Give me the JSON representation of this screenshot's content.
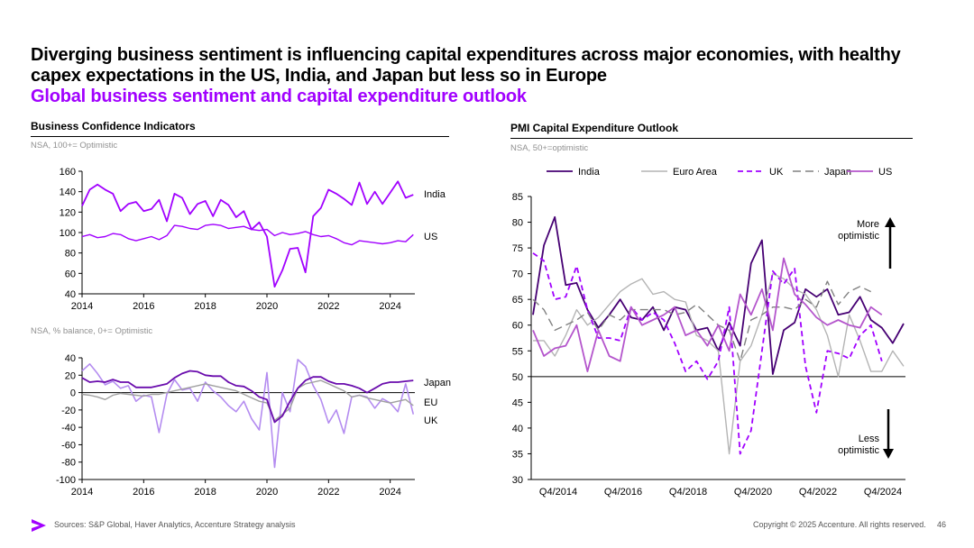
{
  "headline": "Diverging business sentiment is influencing capital expenditures across major economies, with healthy capex expectations in the US, India, and Japan but less so in Europe",
  "subhead": "Global business sentiment and capital expenditure outlook",
  "left_title": "Business Confidence Indicators",
  "right_title": "PMI Capital Expenditure Outlook",
  "note_top": "NSA, 100+= Optimistic",
  "note_bottom": "NSA, % balance, 0+= Optimistic",
  "note_right": "NSA, 50+=optimistic",
  "footer": {
    "sources": "Sources: S&P Global, Haver Analytics, Accenture Strategy analysis",
    "copyright": "Copyright © 2025 Accenture. All rights reserved.",
    "page": "46"
  },
  "colors": {
    "india": "#460073",
    "us_conf": "#a100ff",
    "us_line": "#a100ff",
    "us_pmi": "#b455cc",
    "uk": "#a100ff",
    "uk_conf": "#b48cf0",
    "euro": "#b4b4b4",
    "japan": "#808080",
    "japan_conf": "#6a0dad",
    "eu_conf": "#a0a0a0"
  },
  "chart_data": [
    {
      "type": "line",
      "title": "Business Confidence Indicators",
      "subtitle": "NSA, 100+= Optimistic",
      "ylim": [
        40,
        160
      ],
      "yticks": [
        40,
        60,
        80,
        100,
        120,
        140,
        160
      ],
      "xlim": [
        2014,
        2024.8
      ],
      "xticks": [
        2014,
        2016,
        2018,
        2020,
        2022,
        2024
      ],
      "series": [
        {
          "name": "India",
          "label": "India",
          "color": "#a100ff",
          "width": 1.8,
          "x": [
            2014,
            2014.25,
            2014.5,
            2014.75,
            2015,
            2015.25,
            2015.5,
            2015.75,
            2016,
            2016.25,
            2016.5,
            2016.75,
            2017,
            2017.25,
            2017.5,
            2017.75,
            2018,
            2018.25,
            2018.5,
            2018.75,
            2019,
            2019.25,
            2019.5,
            2019.75,
            2020,
            2020.25,
            2020.5,
            2020.75,
            2021,
            2021.25,
            2021.5,
            2021.75,
            2022,
            2022.25,
            2022.5,
            2022.75,
            2023,
            2023.25,
            2023.5,
            2023.75,
            2024,
            2024.25,
            2024.5,
            2024.75
          ],
          "values": [
            126,
            142,
            147,
            142,
            138,
            121,
            128,
            130,
            121,
            123,
            132,
            111,
            138,
            134,
            118,
            128,
            131,
            116,
            132,
            127,
            115,
            121,
            103,
            110,
            96,
            47,
            63,
            84,
            85,
            61,
            116,
            124,
            142,
            138,
            133,
            127,
            149,
            128,
            140,
            128,
            139,
            150,
            134,
            137
          ]
        },
        {
          "name": "US",
          "label": "US",
          "color": "#a100ff",
          "width": 1.4,
          "x": [
            2014,
            2014.25,
            2014.5,
            2014.75,
            2015,
            2015.25,
            2015.5,
            2015.75,
            2016,
            2016.25,
            2016.5,
            2016.75,
            2017,
            2017.25,
            2017.5,
            2017.75,
            2018,
            2018.25,
            2018.5,
            2018.75,
            2019,
            2019.25,
            2019.5,
            2019.75,
            2020,
            2020.25,
            2020.5,
            2020.75,
            2021,
            2021.25,
            2021.5,
            2021.75,
            2022,
            2022.25,
            2022.5,
            2022.75,
            2023,
            2023.25,
            2023.5,
            2023.75,
            2024,
            2024.25,
            2024.5,
            2024.75
          ],
          "values": [
            96,
            98,
            95,
            96,
            99,
            98,
            94,
            92,
            94,
            96,
            93,
            97,
            107,
            106,
            104,
            103,
            107,
            108,
            107,
            104,
            105,
            106,
            103,
            102,
            103,
            97,
            100,
            98,
            99,
            101,
            98,
            96,
            97,
            94,
            90,
            88,
            92,
            91,
            90,
            89,
            90,
            92,
            91,
            98
          ]
        }
      ]
    },
    {
      "type": "line",
      "subtitle": "NSA, % balance, 0+= Optimistic",
      "ylim": [
        -100,
        40
      ],
      "yticks": [
        -100,
        -80,
        -60,
        -40,
        -20,
        0,
        20,
        40
      ],
      "xlim": [
        2014,
        2024.8
      ],
      "xticks": [
        2014,
        2016,
        2018,
        2020,
        2022,
        2024
      ],
      "series": [
        {
          "name": "UK",
          "label": "UK",
          "color": "#b48cf0",
          "width": 1.6,
          "x": [
            2014,
            2014.25,
            2014.5,
            2014.75,
            2015,
            2015.25,
            2015.5,
            2015.75,
            2016,
            2016.25,
            2016.5,
            2016.75,
            2017,
            2017.25,
            2017.5,
            2017.75,
            2018,
            2018.25,
            2018.5,
            2018.75,
            2019,
            2019.25,
            2019.5,
            2019.75,
            2020,
            2020.25,
            2020.5,
            2020.75,
            2021,
            2021.25,
            2021.5,
            2021.75,
            2022,
            2022.25,
            2022.5,
            2022.75,
            2023,
            2023.25,
            2023.5,
            2023.75,
            2024,
            2024.25,
            2024.5,
            2024.75
          ],
          "values": [
            25,
            33,
            22,
            9,
            13,
            5,
            8,
            -10,
            -3,
            -5,
            -46,
            -2,
            15,
            3,
            5,
            -10,
            12,
            2,
            -5,
            -15,
            -22,
            -10,
            -30,
            -43,
            23,
            -86,
            0,
            -22,
            38,
            30,
            8,
            -8,
            -35,
            -20,
            -47,
            -5,
            -3,
            -5,
            -18,
            -7,
            -12,
            -22,
            10,
            -25
          ]
        },
        {
          "name": "EU",
          "label": "EU",
          "color": "#a0a0a0",
          "width": 1.4,
          "x": [
            2014,
            2014.25,
            2014.5,
            2014.75,
            2015,
            2015.25,
            2015.5,
            2015.75,
            2016,
            2016.25,
            2016.5,
            2016.75,
            2017,
            2017.25,
            2017.5,
            2017.75,
            2018,
            2018.25,
            2018.5,
            2018.75,
            2019,
            2019.25,
            2019.5,
            2019.75,
            2020,
            2020.25,
            2020.5,
            2020.75,
            2021,
            2021.25,
            2021.5,
            2021.75,
            2022,
            2022.25,
            2022.5,
            2022.75,
            2023,
            2023.25,
            2023.5,
            2023.75,
            2024,
            2024.25,
            2024.5,
            2024.75
          ],
          "values": [
            -2,
            -3,
            -5,
            -8,
            -3,
            -1,
            -2,
            -3,
            -4,
            -2,
            -2,
            0,
            2,
            4,
            6,
            8,
            10,
            8,
            6,
            4,
            2,
            -2,
            -6,
            -10,
            -12,
            -32,
            -25,
            -18,
            5,
            10,
            12,
            14,
            10,
            6,
            2,
            -5,
            -3,
            -6,
            -8,
            -10,
            -12,
            -10,
            -8,
            -15
          ]
        },
        {
          "name": "Japan",
          "label": "Japan",
          "color": "#6a0dad",
          "width": 1.8,
          "x": [
            2014,
            2014.25,
            2014.5,
            2014.75,
            2015,
            2015.25,
            2015.5,
            2015.75,
            2016,
            2016.25,
            2016.5,
            2016.75,
            2017,
            2017.25,
            2017.5,
            2017.75,
            2018,
            2018.25,
            2018.5,
            2018.75,
            2019,
            2019.25,
            2019.5,
            2019.75,
            2020,
            2020.25,
            2020.5,
            2020.75,
            2021,
            2021.25,
            2021.5,
            2021.75,
            2022,
            2022.25,
            2022.5,
            2022.75,
            2023,
            2023.25,
            2023.5,
            2023.75,
            2024,
            2024.25,
            2024.5,
            2024.75
          ],
          "values": [
            17,
            12,
            13,
            12,
            15,
            12,
            12,
            6,
            6,
            6,
            8,
            10,
            17,
            22,
            25,
            24,
            20,
            19,
            19,
            12,
            8,
            7,
            2,
            -5,
            -8,
            -34,
            -27,
            -10,
            5,
            14,
            18,
            18,
            13,
            10,
            10,
            8,
            5,
            0,
            5,
            10,
            12,
            12,
            13,
            14
          ]
        }
      ]
    },
    {
      "type": "line",
      "title": "PMI Capital Expenditure Outlook",
      "subtitle": "NSA, 50+=optimistic",
      "ylim": [
        30,
        85
      ],
      "yticks": [
        30,
        35,
        40,
        45,
        50,
        55,
        60,
        65,
        70,
        75,
        80,
        85
      ],
      "xlim": [
        0,
        46
      ],
      "xticks": [
        2,
        12,
        22,
        32,
        42
      ],
      "xticklabels": [
        "Q4/2014",
        "Q4/2016",
        "Q4/2018",
        "Q4/2020",
        "Q4/2022",
        "Q4/2024"
      ],
      "xticks_all": [
        2,
        12,
        22,
        32,
        42,
        52
      ],
      "legend": [
        "India",
        "Euro Area",
        "UK",
        "Japan",
        "US"
      ],
      "annotations": [
        "More optimistic",
        "Less optimistic"
      ],
      "series": [
        {
          "name": "India",
          "color": "#460073",
          "dash": "",
          "width": 1.8,
          "values": [
            62,
            75.5,
            81,
            67.8,
            68.2,
            63,
            59.5,
            62,
            65,
            61.5,
            61,
            63.5,
            59,
            63.5,
            63,
            59,
            59.5,
            55,
            60.5,
            56,
            72,
            76.5,
            50.5,
            59,
            60.5,
            67,
            65.5,
            67,
            62,
            62.5,
            65.5,
            61,
            59.5,
            56.5,
            60.3
          ]
        },
        {
          "name": "Euro Area",
          "color": "#b4b4b4",
          "dash": "",
          "width": 1.4,
          "values": [
            57,
            57,
            54,
            58,
            63,
            60,
            61.5,
            64,
            66.5,
            68,
            69,
            66,
            66.5,
            65,
            64.5,
            58,
            57,
            55,
            35,
            53,
            56,
            62,
            70,
            69,
            67,
            66,
            63,
            58,
            50,
            62,
            57,
            51,
            51,
            55,
            52
          ]
        },
        {
          "name": "UK",
          "color": "#a100ff",
          "dash": "6,4",
          "width": 1.8,
          "values": [
            74,
            72.5,
            65,
            65.5,
            71.5,
            63,
            57.5,
            57.5,
            57,
            63.5,
            61,
            62.5,
            61,
            56.5,
            51,
            53,
            49.5,
            53,
            63.5,
            35,
            39.5,
            55,
            70.5,
            68,
            71,
            52,
            43,
            55,
            54.5,
            53.5,
            58,
            60,
            53
          ]
        },
        {
          "name": "Japan",
          "color": "#808080",
          "dash": "9,5",
          "width": 1.4,
          "values": [
            65,
            63,
            59,
            60,
            61,
            62.5,
            59,
            62,
            61,
            63,
            63,
            63,
            63,
            62,
            62.5,
            64,
            62,
            60,
            59,
            53,
            61,
            62,
            63.5,
            63.5,
            63,
            65,
            63.5,
            68.5,
            64,
            66.5,
            67.5,
            66.5
          ]
        },
        {
          "name": "US",
          "color": "#b455cc",
          "dash": "",
          "width": 1.8,
          "values": [
            59,
            54,
            55.5,
            56,
            60,
            51,
            59,
            54,
            53,
            63.5,
            60,
            61,
            62,
            63.5,
            58,
            59,
            56,
            60,
            55,
            66,
            62,
            67,
            59,
            73,
            66,
            64,
            61.5,
            60,
            61,
            60,
            59.5,
            63.5,
            62
          ]
        }
      ]
    }
  ]
}
